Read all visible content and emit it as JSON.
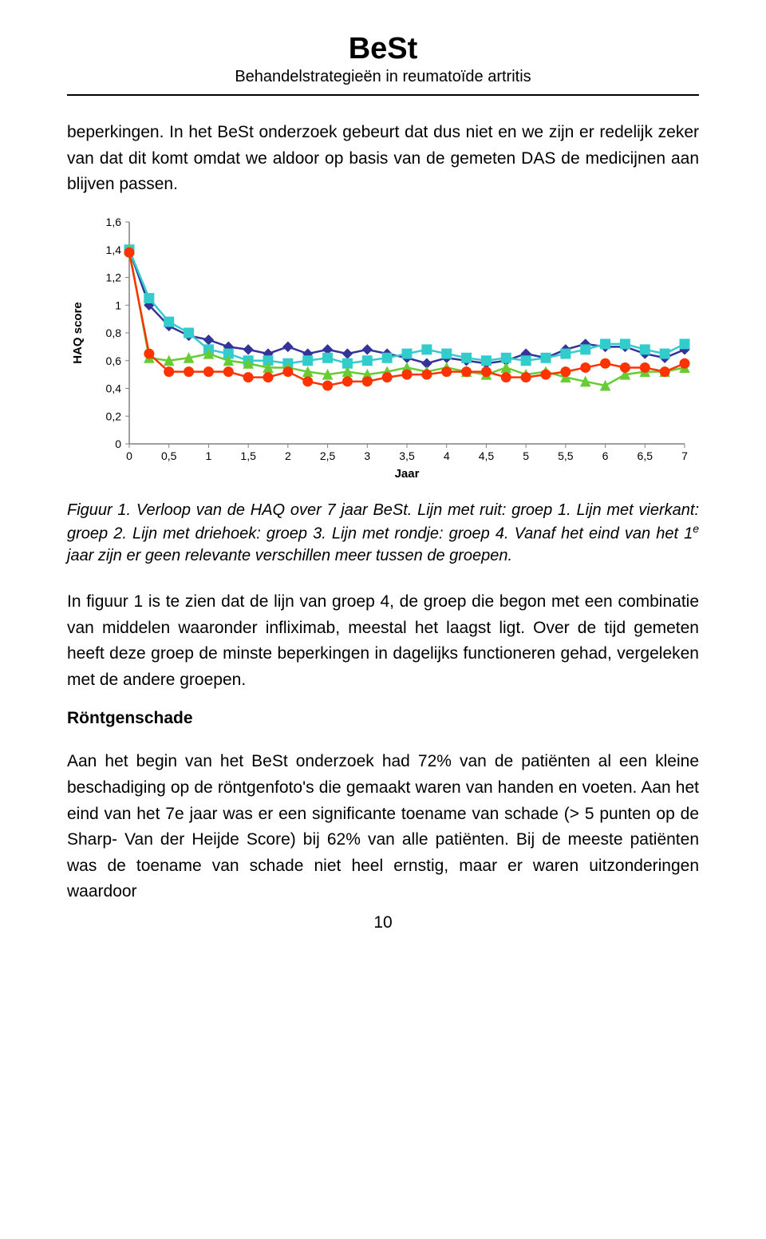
{
  "header": {
    "title": "BeSt",
    "subtitle": "Behandelstrategieën in reumatoïde artritis"
  },
  "para1": "beperkingen. In het BeSt onderzoek gebeurt dat dus niet en we zijn er redelijk zeker van dat dit komt omdat we aldoor op basis van de gemeten DAS de medicijnen aan blijven passen.",
  "caption_prefix": "Figuur 1. Verloop van de HAQ over 7 jaar BeSt. Lijn met ruit: groep 1. Lijn met vierkant: groep 2. Lijn met driehoek: groep 3. Lijn met rondje: groep 4. Vanaf het eind van het 1",
  "caption_sup": "e",
  "caption_suffix": " jaar zijn er geen relevante verschillen meer tussen de groepen.",
  "para2": "In figuur 1 is te zien dat de lijn van groep 4, de groep die begon met een combinatie van middelen waaronder infliximab, meestal het laagst ligt. Over de tijd gemeten heeft deze groep de minste beperkingen in dagelijks functioneren gehad, vergeleken met de andere groepen.",
  "h2": "Röntgenschade",
  "para3": "Aan het begin van het BeSt onderzoek had 72% van de patiënten al een kleine beschadiging op de röntgenfoto's die gemaakt waren van handen en voeten. Aan het eind van het 7e jaar was er een significante toename van schade (> 5 punten op de Sharp- Van der Heijde Score) bij 62% van alle patiënten. Bij de meeste patiënten was de toename van schade niet heel ernstig, maar er waren uitzonderingen waardoor",
  "pagenum": "10",
  "chart": {
    "type": "line",
    "ylabel": "HAQ score",
    "xlabel": "Jaar",
    "label_fontsize": 15,
    "tick_fontsize": 14,
    "xlim": [
      0,
      7
    ],
    "ylim": [
      0,
      1.6
    ],
    "xticks": [
      0,
      0.5,
      1,
      1.5,
      2,
      2.5,
      3,
      3.5,
      4,
      4.5,
      5,
      5.5,
      6,
      6.5,
      7
    ],
    "xtick_labels": [
      "0",
      "0,5",
      "1",
      "1,5",
      "2",
      "2,5",
      "3",
      "3,5",
      "4",
      "4,5",
      "5",
      "5,5",
      "6",
      "6,5",
      "7"
    ],
    "yticks": [
      0,
      0.2,
      0.4,
      0.6,
      0.8,
      1,
      1.2,
      1.4,
      1.6
    ],
    "ytick_labels": [
      "0",
      "0,2",
      "0,4",
      "0,6",
      "0,8",
      "1",
      "1,2",
      "1,4",
      "1,6"
    ],
    "axis_color": "#808080",
    "tick_color": "#808080",
    "background_color": "#ffffff",
    "line_width": 2.5,
    "marker_size": 6,
    "series": [
      {
        "name": "groep1",
        "marker": "diamond",
        "color": "#333399",
        "x": [
          0,
          0.25,
          0.5,
          0.75,
          1,
          1.25,
          1.5,
          1.75,
          2,
          2.25,
          2.5,
          2.75,
          3,
          3.25,
          3.5,
          3.75,
          4,
          4.25,
          4.5,
          4.75,
          5,
          5.25,
          5.5,
          5.75,
          6,
          6.25,
          6.5,
          6.75,
          7
        ],
        "y": [
          1.4,
          1.0,
          0.85,
          0.78,
          0.75,
          0.7,
          0.68,
          0.65,
          0.7,
          0.65,
          0.68,
          0.65,
          0.68,
          0.65,
          0.62,
          0.58,
          0.62,
          0.6,
          0.58,
          0.6,
          0.65,
          0.62,
          0.68,
          0.72,
          0.7,
          0.7,
          0.65,
          0.62,
          0.68
        ]
      },
      {
        "name": "groep2",
        "marker": "square",
        "color": "#33cccc",
        "x": [
          0,
          0.25,
          0.5,
          0.75,
          1,
          1.25,
          1.5,
          1.75,
          2,
          2.25,
          2.5,
          2.75,
          3,
          3.25,
          3.5,
          3.75,
          4,
          4.25,
          4.5,
          4.75,
          5,
          5.25,
          5.5,
          5.75,
          6,
          6.25,
          6.5,
          6.75,
          7
        ],
        "y": [
          1.4,
          1.05,
          0.88,
          0.8,
          0.68,
          0.65,
          0.6,
          0.6,
          0.58,
          0.6,
          0.62,
          0.58,
          0.6,
          0.62,
          0.65,
          0.68,
          0.65,
          0.62,
          0.6,
          0.62,
          0.6,
          0.62,
          0.65,
          0.68,
          0.72,
          0.72,
          0.68,
          0.65,
          0.72
        ]
      },
      {
        "name": "groep3",
        "marker": "triangle",
        "color": "#66cc33",
        "x": [
          0,
          0.25,
          0.5,
          0.75,
          1,
          1.25,
          1.5,
          1.75,
          2,
          2.25,
          2.5,
          2.75,
          3,
          3.25,
          3.5,
          3.75,
          4,
          4.25,
          4.5,
          4.75,
          5,
          5.25,
          5.5,
          5.75,
          6,
          6.25,
          6.5,
          6.75,
          7
        ],
        "y": [
          1.4,
          0.62,
          0.6,
          0.62,
          0.65,
          0.6,
          0.58,
          0.55,
          0.55,
          0.52,
          0.5,
          0.52,
          0.5,
          0.52,
          0.55,
          0.52,
          0.55,
          0.52,
          0.5,
          0.55,
          0.5,
          0.52,
          0.48,
          0.45,
          0.42,
          0.5,
          0.52,
          0.52,
          0.55
        ]
      },
      {
        "name": "groep4",
        "marker": "circle",
        "color": "#ff3300",
        "x": [
          0,
          0.25,
          0.5,
          0.75,
          1,
          1.25,
          1.5,
          1.75,
          2,
          2.25,
          2.5,
          2.75,
          3,
          3.25,
          3.5,
          3.75,
          4,
          4.25,
          4.5,
          4.75,
          5,
          5.25,
          5.5,
          5.75,
          6,
          6.25,
          6.5,
          6.75,
          7
        ],
        "y": [
          1.38,
          0.65,
          0.52,
          0.52,
          0.52,
          0.52,
          0.48,
          0.48,
          0.52,
          0.45,
          0.42,
          0.45,
          0.45,
          0.48,
          0.5,
          0.5,
          0.52,
          0.52,
          0.52,
          0.48,
          0.48,
          0.5,
          0.52,
          0.55,
          0.58,
          0.55,
          0.55,
          0.52,
          0.58
        ]
      }
    ]
  }
}
